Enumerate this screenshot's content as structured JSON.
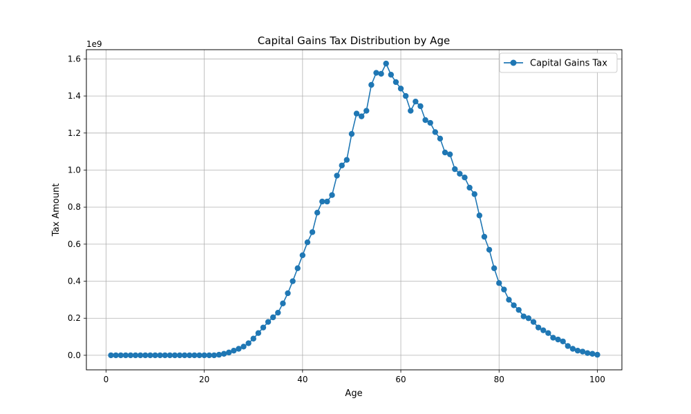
{
  "chart_data": {
    "type": "line",
    "title": "Capital Gains Tax Distribution by Age",
    "xlabel": "Age",
    "ylabel": "Tax Amount",
    "y_offset_text": "1e9",
    "xlim": [
      -4,
      105
    ],
    "ylim": [
      -0.0786,
      1.65
    ],
    "x_ticks": [
      0,
      20,
      40,
      60,
      80,
      100
    ],
    "x_tick_labels": [
      "0",
      "20",
      "40",
      "60",
      "80",
      "100"
    ],
    "y_ticks": [
      0.0,
      0.2,
      0.4,
      0.6,
      0.8,
      1.0,
      1.2,
      1.4,
      1.6
    ],
    "y_tick_labels": [
      "0.0",
      "0.2",
      "0.4",
      "0.6",
      "0.8",
      "1.0",
      "1.2",
      "1.4",
      "1.6"
    ],
    "grid": true,
    "legend_position": "top-right",
    "series": [
      {
        "name": "Capital Gains Tax",
        "color": "#1f77b4",
        "marker": "circle",
        "x": [
          1,
          2,
          3,
          4,
          5,
          6,
          7,
          8,
          9,
          10,
          11,
          12,
          13,
          14,
          15,
          16,
          17,
          18,
          19,
          20,
          21,
          22,
          23,
          24,
          25,
          26,
          27,
          28,
          29,
          30,
          31,
          32,
          33,
          34,
          35,
          36,
          37,
          38,
          39,
          40,
          41,
          42,
          43,
          44,
          45,
          46,
          47,
          48,
          49,
          50,
          51,
          52,
          53,
          54,
          55,
          56,
          57,
          58,
          59,
          60,
          61,
          62,
          63,
          64,
          65,
          66,
          67,
          68,
          69,
          70,
          71,
          72,
          73,
          74,
          75,
          76,
          77,
          78,
          79,
          80,
          81,
          82,
          83,
          84,
          85,
          86,
          87,
          88,
          89,
          90,
          91,
          92,
          93,
          94,
          95,
          96,
          97,
          98,
          99,
          100
        ],
        "values": [
          0,
          0,
          0,
          0,
          0,
          0,
          0,
          0,
          0,
          0,
          0,
          0,
          0,
          0,
          0,
          0,
          0,
          0,
          0,
          0,
          0,
          0,
          0.003,
          0.008,
          0.015,
          0.025,
          0.035,
          0.047,
          0.065,
          0.09,
          0.12,
          0.15,
          0.18,
          0.205,
          0.23,
          0.28,
          0.335,
          0.4,
          0.47,
          0.54,
          0.61,
          0.665,
          0.77,
          0.83,
          0.83,
          0.865,
          0.97,
          1.025,
          1.055,
          1.195,
          1.305,
          1.29,
          1.32,
          1.46,
          1.525,
          1.52,
          1.575,
          1.515,
          1.475,
          1.44,
          1.4,
          1.32,
          1.37,
          1.345,
          1.27,
          1.255,
          1.205,
          1.17,
          1.095,
          1.085,
          1.005,
          0.98,
          0.96,
          0.905,
          0.87,
          0.755,
          0.64,
          0.57,
          0.47,
          0.39,
          0.355,
          0.3,
          0.27,
          0.245,
          0.21,
          0.2,
          0.18,
          0.15,
          0.135,
          0.12,
          0.095,
          0.085,
          0.075,
          0.05,
          0.035,
          0.025,
          0.02,
          0.012,
          0.008,
          0.003
        ]
      }
    ]
  }
}
